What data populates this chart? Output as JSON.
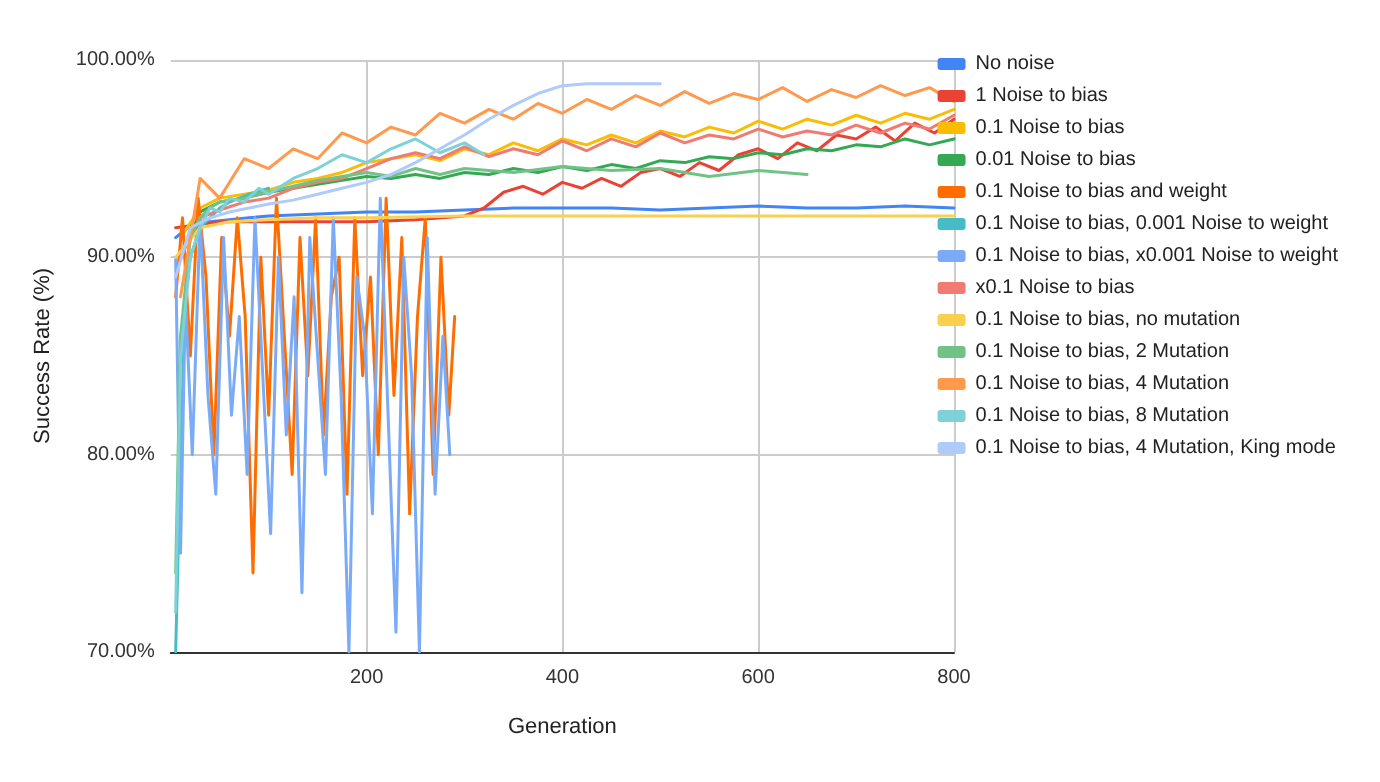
{
  "chart_data": {
    "type": "line",
    "xlabel": "Generation",
    "ylabel": "Success Rate (%)",
    "xlim": [
      0,
      800
    ],
    "xticks": [
      200,
      400,
      600,
      800
    ],
    "ylim": [
      70,
      100
    ],
    "yticks": [
      {
        "value": 70,
        "label": "70.00%"
      },
      {
        "value": 80,
        "label": "80.00%"
      },
      {
        "value": 90,
        "label": "90.00%"
      },
      {
        "value": 100,
        "label": "100.00%"
      }
    ],
    "grid": true,
    "legend": "right",
    "marker": "none",
    "line_style": "solid",
    "series": [
      {
        "name": "No noise",
        "color": "#4285f4",
        "x": [
          5,
          20,
          40,
          60,
          80,
          100,
          150,
          200,
          250,
          300,
          350,
          400,
          450,
          500,
          550,
          600,
          650,
          700,
          750,
          800
        ],
        "values": [
          91.0,
          91.6,
          91.8,
          91.9,
          92.0,
          92.1,
          92.2,
          92.3,
          92.3,
          92.4,
          92.5,
          92.5,
          92.5,
          92.4,
          92.5,
          92.6,
          92.5,
          92.5,
          92.6,
          92.5
        ]
      },
      {
        "name": "1 Noise to bias",
        "color": "#ea4335",
        "x": [
          5,
          50,
          100,
          150,
          200,
          250,
          300,
          320,
          340,
          360,
          380,
          400,
          420,
          440,
          460,
          480,
          500,
          520,
          540,
          560,
          580,
          600,
          620,
          640,
          660,
          680,
          700,
          720,
          740,
          760,
          780,
          800
        ],
        "values": [
          91.5,
          91.8,
          91.8,
          91.8,
          91.8,
          91.9,
          92.1,
          92.5,
          93.3,
          93.6,
          93.2,
          93.8,
          93.5,
          94.0,
          93.6,
          94.3,
          94.5,
          94.1,
          94.8,
          94.4,
          95.2,
          95.5,
          95.0,
          95.8,
          95.4,
          96.2,
          96.0,
          96.6,
          95.9,
          96.8,
          96.3,
          97.0
        ]
      },
      {
        "name": "0.1 Noise to bias",
        "color": "#fbbc04",
        "x": [
          10,
          30,
          50,
          75,
          100,
          125,
          150,
          175,
          200,
          225,
          250,
          275,
          300,
          325,
          350,
          375,
          400,
          425,
          450,
          475,
          500,
          525,
          550,
          575,
          600,
          625,
          650,
          675,
          700,
          725,
          750,
          775,
          800
        ],
        "values": [
          91,
          92.5,
          93,
          93.2,
          93.4,
          93.8,
          94,
          94.3,
          94.8,
          95.0,
          95.2,
          94.9,
          95.5,
          95.2,
          95.8,
          95.4,
          96,
          95.7,
          96.2,
          95.8,
          96.4,
          96.1,
          96.6,
          96.3,
          96.9,
          96.5,
          97.0,
          96.7,
          97.2,
          96.8,
          97.3,
          97.0,
          97.5
        ]
      },
      {
        "name": "0.01 Noise to bias",
        "color": "#34a853",
        "x": [
          10,
          30,
          50,
          75,
          100,
          125,
          150,
          175,
          200,
          225,
          250,
          275,
          300,
          325,
          350,
          375,
          400,
          425,
          450,
          475,
          500,
          525,
          550,
          575,
          600,
          625,
          650,
          675,
          700,
          725,
          750,
          775,
          800
        ],
        "values": [
          90,
          92.3,
          92.8,
          93.0,
          93.3,
          93.5,
          93.7,
          93.9,
          94.1,
          94.0,
          94.2,
          94.0,
          94.3,
          94.2,
          94.5,
          94.3,
          94.6,
          94.4,
          94.7,
          94.5,
          94.9,
          94.8,
          95.1,
          95.0,
          95.3,
          95.2,
          95.5,
          95.4,
          95.7,
          95.6,
          96.0,
          95.7,
          96.0
        ]
      },
      {
        "name": "0.1 Noise to bias and weight",
        "color": "#ff6d01",
        "x": [
          5,
          12,
          20,
          28,
          36,
          44,
          52,
          60,
          68,
          76,
          84,
          92,
          100,
          108,
          116,
          124,
          132,
          140,
          148,
          156,
          164,
          172,
          180,
          188,
          196,
          204,
          212,
          220,
          228,
          236,
          244,
          252,
          260,
          268,
          276,
          284,
          290
        ],
        "values": [
          88,
          92,
          85,
          93,
          89,
          80,
          91,
          86,
          92,
          87,
          74,
          90,
          82,
          93,
          86,
          79,
          91,
          84,
          92,
          81,
          88,
          90,
          78,
          92,
          84,
          89,
          80,
          93,
          83,
          91,
          77,
          87,
          92,
          79,
          90,
          82,
          87
        ]
      },
      {
        "name": "0.1 Noise to bias, 0.001 Noise to weight",
        "color": "#46bdc6",
        "x": [
          5,
          10,
          15,
          20,
          30,
          40,
          50,
          60,
          80,
          100
        ],
        "values": [
          70,
          80,
          88,
          90,
          91.5,
          92,
          92.5,
          92.8,
          93.2,
          93.5
        ]
      },
      {
        "name": "0.1 Noise to bias, x0.001 Noise to weight",
        "color": "#7baaf7",
        "x": [
          5,
          10,
          15,
          22,
          30,
          38,
          46,
          54,
          62,
          70,
          78,
          86,
          94,
          102,
          110,
          118,
          126,
          134,
          142,
          150,
          158,
          166,
          174,
          182,
          190,
          198,
          206,
          214,
          222,
          230,
          238,
          246,
          254,
          262,
          270,
          278,
          285
        ],
        "values": [
          90,
          75,
          88,
          80,
          92,
          83,
          78,
          91,
          82,
          87,
          79,
          92,
          84,
          76,
          90,
          81,
          88,
          73,
          91,
          85,
          79,
          92,
          83,
          70,
          89,
          86,
          77,
          93,
          82,
          71,
          90,
          84,
          70,
          91,
          78,
          86,
          80
        ]
      },
      {
        "name": "x0.1 Noise to bias",
        "color": "#f07b72",
        "x": [
          10,
          30,
          50,
          75,
          100,
          125,
          150,
          175,
          200,
          225,
          250,
          275,
          300,
          325,
          350,
          375,
          400,
          425,
          450,
          475,
          500,
          525,
          550,
          575,
          600,
          625,
          650,
          675,
          700,
          725,
          750,
          775,
          800
        ],
        "values": [
          90,
          92.0,
          92.4,
          92.8,
          93.0,
          93.5,
          93.8,
          94.0,
          94.5,
          95.0,
          95.3,
          95.0,
          95.6,
          95.1,
          95.5,
          95.2,
          95.9,
          95.4,
          96.0,
          95.6,
          96.3,
          95.8,
          96.2,
          96.0,
          96.5,
          96.1,
          96.4,
          96.2,
          96.7,
          96.3,
          96.8,
          96.5,
          97.2
        ]
      },
      {
        "name": "0.1 Noise to bias, no mutation",
        "color": "#fcd04f",
        "x": [
          5,
          30,
          60,
          100,
          150,
          200,
          300,
          400,
          500,
          600,
          700,
          800
        ],
        "values": [
          90,
          91.5,
          91.8,
          91.9,
          92.0,
          92.0,
          92.1,
          92.1,
          92.1,
          92.1,
          92.1,
          92.1
        ]
      },
      {
        "name": "0.1 Noise to bias, 2 Mutation",
        "color": "#71c287",
        "x": [
          5,
          10,
          20,
          30,
          40,
          50,
          75,
          100,
          125,
          150,
          175,
          200,
          225,
          250,
          275,
          300,
          350,
          400,
          450,
          500,
          550,
          600,
          650
        ],
        "values": [
          74,
          86,
          91,
          92,
          92.5,
          92.8,
          93.0,
          93.3,
          93.6,
          93.9,
          94.1,
          94.3,
          94.1,
          94.5,
          94.2,
          94.5,
          94.3,
          94.6,
          94.4,
          94.5,
          94.1,
          94.4,
          94.2
        ]
      },
      {
        "name": "0.1 Noise to bias, 4 Mutation",
        "color": "#ff994d",
        "x": [
          10,
          30,
          50,
          75,
          100,
          125,
          150,
          175,
          200,
          225,
          250,
          275,
          300,
          325,
          350,
          375,
          400,
          425,
          450,
          475,
          500,
          525,
          550,
          575,
          600,
          625,
          650,
          675,
          700,
          725,
          750,
          775,
          800
        ],
        "values": [
          88,
          94,
          93,
          95,
          94.5,
          95.5,
          95,
          96.3,
          95.8,
          96.6,
          96.2,
          97.3,
          96.8,
          97.5,
          97.0,
          97.8,
          97.3,
          98.0,
          97.5,
          98.2,
          97.7,
          98.4,
          97.8,
          98.3,
          98.0,
          98.6,
          97.9,
          98.5,
          98.1,
          98.7,
          98.2,
          98.6,
          97.9
        ]
      },
      {
        "name": "0.1 Noise to bias, 8 Mutation",
        "color": "#7ed1d7",
        "x": [
          5,
          10,
          20,
          30,
          40,
          50,
          60,
          75,
          90,
          100,
          125,
          150,
          175,
          200,
          225,
          250,
          275,
          300,
          320
        ],
        "values": [
          72,
          85,
          90,
          91.5,
          92.5,
          92.3,
          93.0,
          92.8,
          93.5,
          93.2,
          94.0,
          94.5,
          95.2,
          94.8,
          95.5,
          96,
          95.3,
          95.8,
          95.2
        ]
      },
      {
        "name": "0.1 Noise to bias, 4 Mutation, King mode",
        "color": "#aecbfa",
        "x": [
          5,
          20,
          40,
          60,
          80,
          100,
          125,
          150,
          175,
          200,
          225,
          250,
          275,
          300,
          325,
          350,
          375,
          400,
          425,
          450,
          475,
          500
        ],
        "values": [
          89,
          91.5,
          92.0,
          92.3,
          92.5,
          92.7,
          92.9,
          93.2,
          93.5,
          93.8,
          94.2,
          94.8,
          95.5,
          96.2,
          97.0,
          97.7,
          98.3,
          98.7,
          98.8,
          98.8,
          98.8,
          98.8
        ]
      }
    ]
  }
}
